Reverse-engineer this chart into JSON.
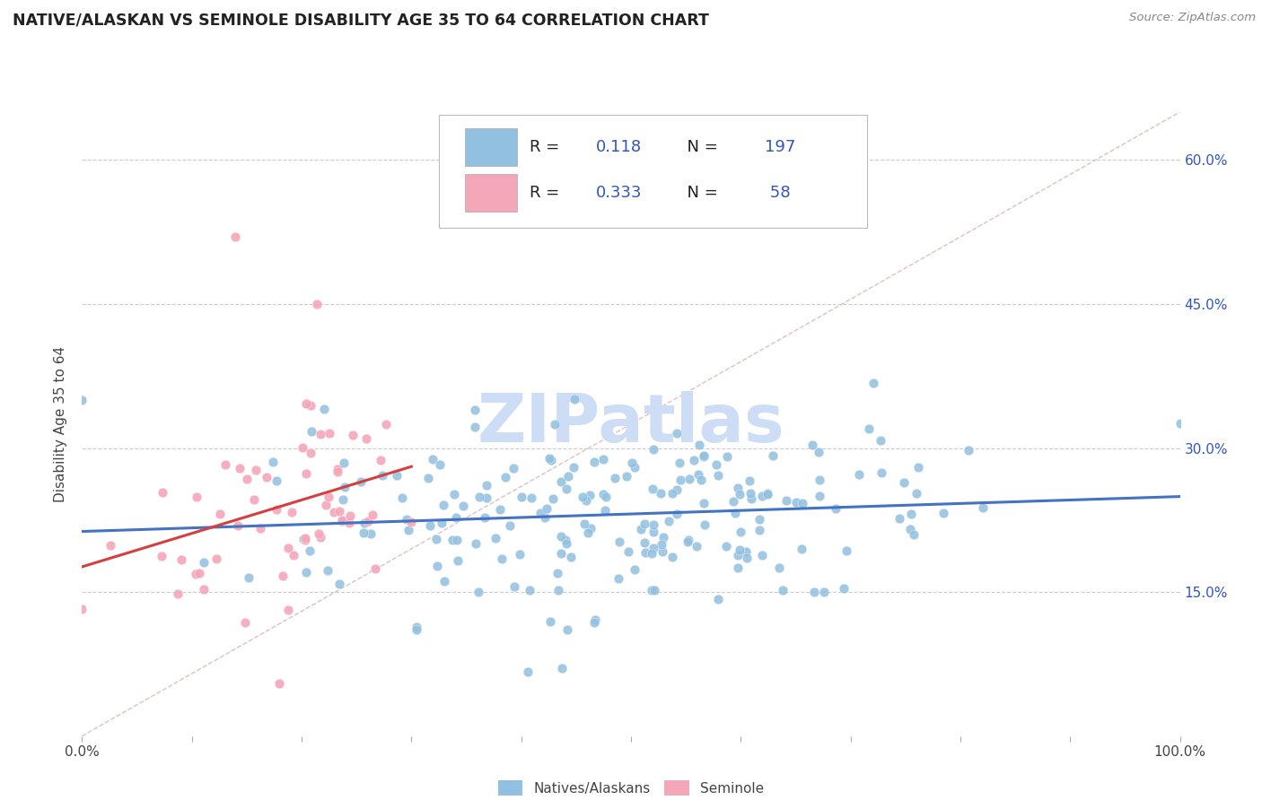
{
  "title": "NATIVE/ALASKAN VS SEMINOLE DISABILITY AGE 35 TO 64 CORRELATION CHART",
  "source_text": "Source: ZipAtlas.com",
  "ylabel": "Disability Age 35 to 64",
  "xmin": 0.0,
  "xmax": 1.0,
  "ymin": 0.0,
  "ymax": 0.65,
  "ytick_pos": [
    0.15,
    0.3,
    0.45,
    0.6
  ],
  "ytick_labels": [
    "15.0%",
    "30.0%",
    "45.0%",
    "60.0%"
  ],
  "blue_color": "#92c0e0",
  "pink_color": "#f4a7b9",
  "blue_line_color": "#4472c4",
  "pink_line_color": "#d44040",
  "diagonal_color": "#e0c0c0",
  "title_color": "#222222",
  "watermark_color": "#ccddf5",
  "legend1_label": "Natives/Alaskans",
  "legend2_label": "Seminole",
  "blue_r": 0.118,
  "pink_r": 0.333,
  "blue_n": 197,
  "pink_n": 58
}
